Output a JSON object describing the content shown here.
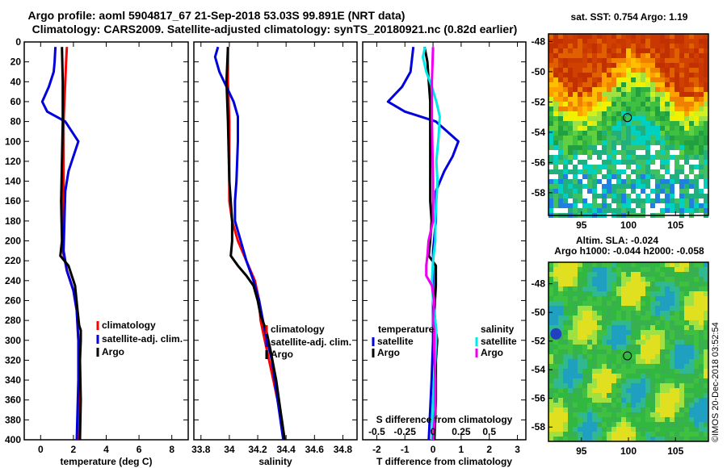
{
  "figure": {
    "title_line1": "Argo profile: aoml 5904817_67 21-Sep-2018 53.03S 99.891E (NRT data)",
    "title_line2": "Climatology: CARS2009. Satellite-adjusted climatology: synTS_20180921.nc (0.82d earlier)",
    "credit": "©IMOS 20-Dec-2018 03:52:54"
  },
  "colors": {
    "climatology": "#ff0000",
    "satellite": "#0000dd",
    "argo": "#000000",
    "salinity_satellite": "#00e8e8",
    "salinity_argo": "#ee00ee"
  },
  "chart_data": [
    {
      "id": "temperature",
      "type": "line",
      "xlabel": "temperature (deg C)",
      "ylabel": "",
      "xlim": [
        -1,
        9
      ],
      "ylim": [
        400,
        0
      ],
      "xticks": [
        0,
        2,
        4,
        6,
        8
      ],
      "xtick_labels": [
        "0",
        "2",
        "4",
        "6",
        "8"
      ],
      "yticks": [
        0,
        20,
        40,
        60,
        80,
        100,
        120,
        140,
        160,
        180,
        200,
        220,
        240,
        260,
        280,
        300,
        320,
        340,
        360,
        380,
        400
      ],
      "legend": [
        "climatology",
        "satellite-adj. clim.",
        "Argo"
      ],
      "series": [
        {
          "name": "climatology",
          "color_key": "climatology",
          "points": [
            [
              1.6,
              5
            ],
            [
              1.55,
              20
            ],
            [
              1.5,
              40
            ],
            [
              1.45,
              60
            ],
            [
              1.4,
              80
            ],
            [
              1.4,
              100
            ],
            [
              1.4,
              140
            ],
            [
              1.35,
              180
            ],
            [
              1.35,
              210
            ],
            [
              1.6,
              230
            ],
            [
              2.0,
              250
            ],
            [
              2.2,
              270
            ],
            [
              2.3,
              300
            ],
            [
              2.35,
              340
            ],
            [
              2.35,
              400
            ]
          ]
        },
        {
          "name": "satellite-adj. clim.",
          "color_key": "satellite",
          "points": [
            [
              0.9,
              5
            ],
            [
              0.85,
              20
            ],
            [
              0.8,
              30
            ],
            [
              0.5,
              45
            ],
            [
              0.1,
              60
            ],
            [
              0.4,
              70
            ],
            [
              1.5,
              80
            ],
            [
              1.9,
              90
            ],
            [
              2.3,
              100
            ],
            [
              2.0,
              115
            ],
            [
              1.7,
              130
            ],
            [
              1.5,
              150
            ],
            [
              1.45,
              180
            ],
            [
              1.4,
              210
            ],
            [
              1.6,
              230
            ],
            [
              2.0,
              250
            ],
            [
              2.2,
              270
            ],
            [
              2.3,
              300
            ],
            [
              2.3,
              340
            ],
            [
              2.2,
              400
            ]
          ]
        },
        {
          "name": "Argo",
          "color_key": "argo",
          "points": [
            [
              1.3,
              5
            ],
            [
              1.35,
              40
            ],
            [
              1.35,
              80
            ],
            [
              1.3,
              120
            ],
            [
              1.25,
              160
            ],
            [
              1.3,
              200
            ],
            [
              1.2,
              215
            ],
            [
              1.7,
              225
            ],
            [
              2.1,
              245
            ],
            [
              2.25,
              270
            ],
            [
              2.35,
              285
            ],
            [
              2.45,
              290
            ],
            [
              2.45,
              300
            ],
            [
              2.4,
              320
            ],
            [
              2.45,
              360
            ],
            [
              2.4,
              400
            ]
          ]
        }
      ]
    },
    {
      "id": "salinity",
      "type": "line",
      "xlabel": "salinity",
      "ylabel": "",
      "xlim": [
        33.75,
        34.9
      ],
      "ylim": [
        400,
        0
      ],
      "xticks": [
        33.8,
        34.0,
        34.2,
        34.4,
        34.6,
        34.8
      ],
      "xtick_labels": [
        "33.8",
        "34",
        "34.2",
        "34.4",
        "34.6",
        "34.8"
      ],
      "legend": [
        "climatology",
        "satellite-adj. clim.",
        "Argo"
      ],
      "series": [
        {
          "name": "climatology",
          "color_key": "climatology",
          "points": [
            [
              33.99,
              5
            ],
            [
              33.99,
              40
            ],
            [
              34.0,
              80
            ],
            [
              34.0,
              120
            ],
            [
              34.0,
              160
            ],
            [
              34.02,
              180
            ],
            [
              34.06,
              200
            ],
            [
              34.12,
              220
            ],
            [
              34.18,
              240
            ],
            [
              34.21,
              260
            ],
            [
              34.22,
              280
            ],
            [
              34.25,
              300
            ],
            [
              34.28,
              320
            ],
            [
              34.31,
              340
            ],
            [
              34.34,
              360
            ],
            [
              34.37,
              380
            ],
            [
              34.39,
              400
            ]
          ]
        },
        {
          "name": "satellite-adj. clim.",
          "color_key": "satellite",
          "points": [
            [
              33.92,
              5
            ],
            [
              33.9,
              15
            ],
            [
              33.93,
              30
            ],
            [
              33.98,
              45
            ],
            [
              34.03,
              60
            ],
            [
              34.06,
              75
            ],
            [
              34.06,
              100
            ],
            [
              34.05,
              140
            ],
            [
              34.04,
              160
            ],
            [
              34.04,
              180
            ],
            [
              34.08,
              200
            ],
            [
              34.12,
              220
            ],
            [
              34.17,
              240
            ],
            [
              34.21,
              260
            ],
            [
              34.25,
              290
            ],
            [
              34.3,
              320
            ],
            [
              34.34,
              360
            ],
            [
              34.38,
              400
            ]
          ]
        },
        {
          "name": "Argo",
          "color_key": "argo",
          "points": [
            [
              33.99,
              5
            ],
            [
              33.98,
              40
            ],
            [
              33.99,
              80
            ],
            [
              34.0,
              140
            ],
            [
              34.02,
              180
            ],
            [
              34.02,
              200
            ],
            [
              34.01,
              215
            ],
            [
              34.06,
              225
            ],
            [
              34.12,
              235
            ],
            [
              34.17,
              245
            ],
            [
              34.2,
              260
            ],
            [
              34.22,
              275
            ],
            [
              34.26,
              290
            ],
            [
              34.29,
              310
            ],
            [
              34.33,
              340
            ],
            [
              34.36,
              370
            ],
            [
              34.39,
              400
            ]
          ]
        }
      ]
    },
    {
      "id": "difference",
      "type": "line",
      "xlabel": "T difference from climatology",
      "top_axis_label": "S difference from climatology",
      "ylabel": "",
      "xlim": [
        -2.5,
        3.3
      ],
      "ylim": [
        400,
        0
      ],
      "xticks": [
        -2,
        -1,
        0,
        1,
        2,
        3
      ],
      "xtick_labels": [
        "-2",
        "-1",
        "0",
        "1",
        "2",
        "3"
      ],
      "s_xlim": [
        -0.625,
        0.825
      ],
      "s_xticks": [
        -0.5,
        -0.25,
        0,
        0.25,
        0.5
      ],
      "s_xtick_labels": [
        "-0.5",
        "-0.25",
        "0",
        "0.25",
        "0.5"
      ],
      "legend_temperature_title": "temperature",
      "legend_salinity_title": "salinity",
      "legend_satellite": "satellite",
      "legend_argo": "Argo",
      "series": [
        {
          "name": "T satellite",
          "axis": "T",
          "color_key": "satellite",
          "points": [
            [
              -0.7,
              5
            ],
            [
              -0.8,
              30
            ],
            [
              -1.1,
              45
            ],
            [
              -1.6,
              60
            ],
            [
              -1.0,
              70
            ],
            [
              0.1,
              80
            ],
            [
              0.5,
              90
            ],
            [
              0.9,
              100
            ],
            [
              0.7,
              115
            ],
            [
              0.4,
              130
            ],
            [
              0.1,
              150
            ],
            [
              0.1,
              180
            ],
            [
              0.0,
              210
            ],
            [
              0.0,
              230
            ],
            [
              0.0,
              250
            ],
            [
              0.0,
              270
            ],
            [
              0.0,
              300
            ],
            [
              -0.05,
              340
            ],
            [
              -0.15,
              400
            ]
          ]
        },
        {
          "name": "T Argo",
          "axis": "T",
          "color_key": "argo",
          "points": [
            [
              -0.3,
              5
            ],
            [
              -0.2,
              20
            ],
            [
              -0.15,
              40
            ],
            [
              -0.1,
              60
            ],
            [
              -0.1,
              80
            ],
            [
              -0.1,
              100
            ],
            [
              -0.1,
              140
            ],
            [
              -0.1,
              160
            ],
            [
              -0.05,
              180
            ],
            [
              -0.1,
              200
            ],
            [
              -0.15,
              215
            ],
            [
              0.1,
              225
            ],
            [
              0.1,
              245
            ],
            [
              0.05,
              270
            ],
            [
              0.1,
              290
            ],
            [
              0.15,
              300
            ],
            [
              0.1,
              320
            ],
            [
              0.1,
              360
            ],
            [
              0.05,
              400
            ]
          ]
        },
        {
          "name": "S satellite",
          "axis": "S",
          "color_key": "salinity_satellite",
          "points": [
            [
              -0.07,
              5
            ],
            [
              -0.09,
              15
            ],
            [
              -0.06,
              30
            ],
            [
              -0.01,
              45
            ],
            [
              0.03,
              60
            ],
            [
              0.06,
              75
            ],
            [
              0.05,
              95
            ],
            [
              0.03,
              120
            ],
            [
              0.04,
              140
            ],
            [
              0.03,
              160
            ],
            [
              0.02,
              180
            ],
            [
              0.02,
              200
            ],
            [
              0.0,
              220
            ],
            [
              -0.01,
              240
            ],
            [
              0.0,
              260
            ],
            [
              0.03,
              290
            ],
            [
              0.02,
              320
            ],
            [
              0.0,
              360
            ],
            [
              -0.01,
              400
            ]
          ]
        },
        {
          "name": "S Argo",
          "axis": "S",
          "color_key": "salinity_argo",
          "points": [
            [
              0.0,
              5
            ],
            [
              -0.01,
              40
            ],
            [
              -0.01,
              80
            ],
            [
              0.0,
              140
            ],
            [
              0.0,
              180
            ],
            [
              -0.04,
              200
            ],
            [
              -0.05,
              215
            ],
            [
              -0.06,
              225
            ],
            [
              -0.06,
              235
            ],
            [
              -0.01,
              245
            ],
            [
              0.01,
              260
            ],
            [
              0.0,
              280
            ],
            [
              0.01,
              290
            ],
            [
              0.01,
              310
            ],
            [
              0.02,
              340
            ],
            [
              0.02,
              370
            ],
            [
              0.0,
              400
            ]
          ]
        }
      ]
    },
    {
      "id": "sst_map",
      "type": "heatmap",
      "title": "sat. SST: 0.754 Argo: 1.19",
      "xlim": [
        91.5,
        108.5
      ],
      "ylim": [
        -59.5,
        -47.5
      ],
      "xticks": [
        95,
        100,
        105
      ],
      "xtick_labels": [
        "95",
        "100",
        "105"
      ],
      "yticks": [
        -48,
        -50,
        -52,
        -54,
        -56,
        -58
      ],
      "ytick_labels": [
        "-48",
        "-50",
        "-52",
        "-54",
        "-56",
        "-58"
      ],
      "marker": {
        "lon": 99.891,
        "lat": -53.03
      }
    },
    {
      "id": "sla_map",
      "type": "heatmap",
      "title_line1": "Altim. SLA: -0.024",
      "title_line2": "Argo h1000: -0.044 h2000: -0.058",
      "xlim": [
        91.5,
        108.5
      ],
      "ylim": [
        -59,
        -46.5
      ],
      "xticks": [
        95,
        100,
        105
      ],
      "xtick_labels": [
        "95",
        "100",
        "105"
      ],
      "yticks": [
        -48,
        -50,
        -52,
        -54,
        -56,
        -58
      ],
      "ytick_labels": [
        "-48",
        "-50",
        "-52",
        "-54",
        "-56",
        "-58"
      ],
      "marker": {
        "lon": 99.891,
        "lat": -53.03
      }
    }
  ]
}
